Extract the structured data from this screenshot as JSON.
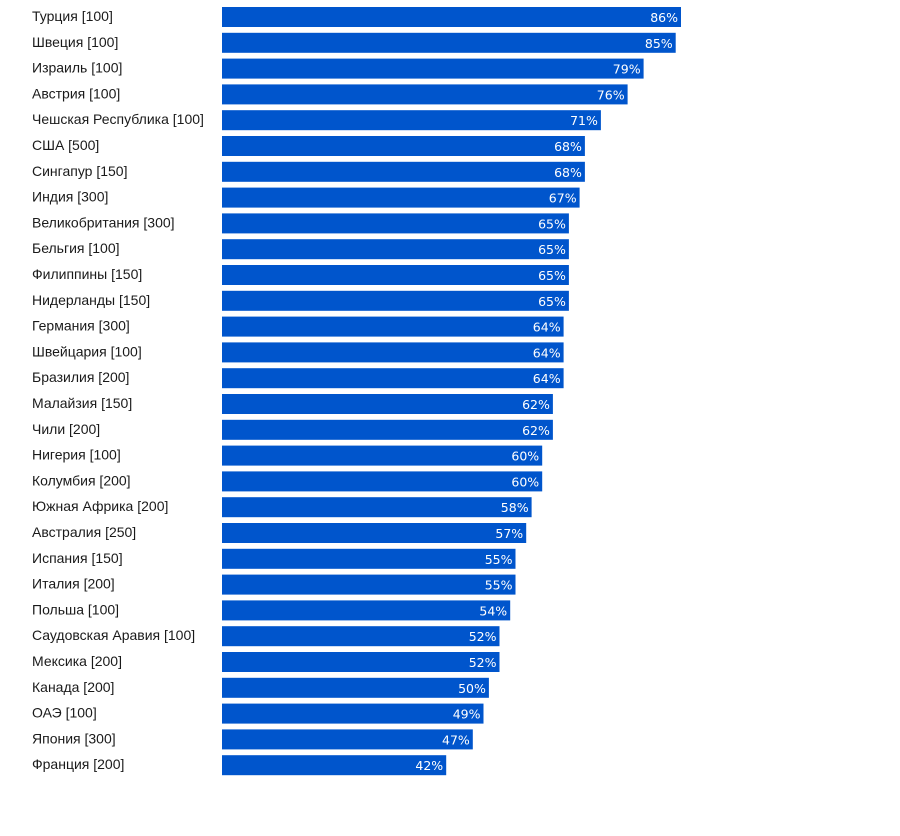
{
  "chart_data": {
    "type": "bar",
    "orientation": "horizontal",
    "value_suffix": "%",
    "bar_color": "#0055cc",
    "label_color": "#ffffff",
    "xlim": [
      0,
      100
    ],
    "grid": false,
    "categories": [
      "Турция [100]",
      "Швеция [100]",
      "Израиль [100]",
      "Австрия [100]",
      "Чешская Республика [100]",
      "США [500]",
      "Сингапур [150]",
      "Индия [300]",
      "Великобритания [300]",
      "Бельгия [100]",
      "Филиппины [150]",
      "Нидерланды [150]",
      "Германия [300]",
      "Швейцария [100]",
      "Бразилия [200]",
      "Малайзия [150]",
      "Чили [200]",
      "Нигерия [100]",
      "Колумбия [200]",
      "Южная Африка [200]",
      "Австралия [250]",
      "Испания [150]",
      "Италия [200]",
      "Польша [100]",
      "Саудовская Аравия [100]",
      "Мексика [200]",
      "Канада [200]",
      "ОАЭ [100]",
      "Япония [300]",
      "Франция [200]"
    ],
    "values": [
      86,
      85,
      79,
      76,
      71,
      68,
      68,
      67,
      65,
      65,
      65,
      65,
      64,
      64,
      64,
      62,
      62,
      60,
      60,
      58,
      57,
      55,
      55,
      54,
      52,
      52,
      50,
      49,
      47,
      42
    ]
  }
}
